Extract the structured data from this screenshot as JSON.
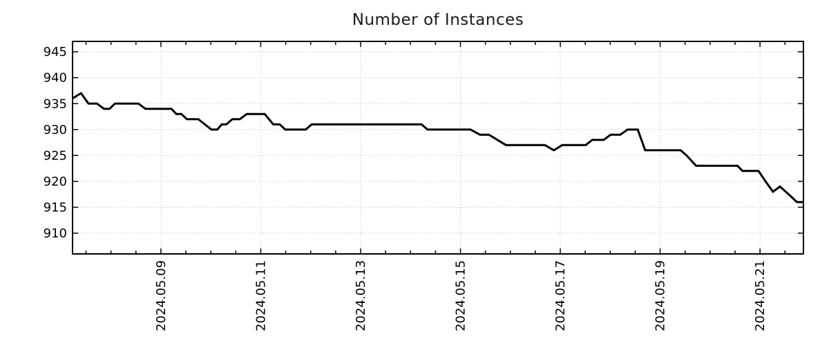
{
  "figure": {
    "background": "#ffffff"
  },
  "chart_data": {
    "type": "line",
    "title": "Number of Instances",
    "xlabel": "",
    "ylabel": "",
    "legend": "none",
    "grid": "dotted major gridlines",
    "x_axis": {
      "kind": "date",
      "tick_labels": [
        "2024.05.09",
        "2024.05.11",
        "2024.05.13",
        "2024.05.15",
        "2024.05.17",
        "2024.05.19",
        "2024.05.21"
      ],
      "tick_positions_days": [
        9,
        11,
        13,
        15,
        17,
        19,
        21
      ],
      "minor_tick_step_days": 0.5,
      "lim_days": [
        7.23,
        21.87
      ],
      "label_rotation_deg": -90
    },
    "y_axis": {
      "ticks": [
        910,
        915,
        920,
        925,
        930,
        935,
        940,
        945
      ],
      "lim": [
        906,
        947
      ]
    },
    "series": [
      {
        "name": "Number of Instances",
        "color": "#000000",
        "points": [
          [
            7.23,
            936
          ],
          [
            7.4,
            937
          ],
          [
            7.55,
            935
          ],
          [
            7.72,
            935
          ],
          [
            7.86,
            934
          ],
          [
            7.97,
            934
          ],
          [
            8.08,
            935
          ],
          [
            8.55,
            935
          ],
          [
            8.69,
            934
          ],
          [
            9.21,
            934
          ],
          [
            9.31,
            933
          ],
          [
            9.41,
            933
          ],
          [
            9.52,
            932
          ],
          [
            9.75,
            932
          ],
          [
            10.01,
            930
          ],
          [
            10.13,
            930
          ],
          [
            10.22,
            931
          ],
          [
            10.31,
            931
          ],
          [
            10.43,
            932
          ],
          [
            10.58,
            932
          ],
          [
            10.72,
            933
          ],
          [
            11.08,
            933
          ],
          [
            11.25,
            931
          ],
          [
            11.38,
            931
          ],
          [
            11.49,
            930
          ],
          [
            11.9,
            930
          ],
          [
            12.02,
            931
          ],
          [
            14.22,
            931
          ],
          [
            14.34,
            930
          ],
          [
            15.2,
            930
          ],
          [
            15.39,
            929
          ],
          [
            15.57,
            929
          ],
          [
            15.91,
            927
          ],
          [
            16.69,
            927
          ],
          [
            16.87,
            926
          ],
          [
            17.04,
            927
          ],
          [
            17.51,
            927
          ],
          [
            17.64,
            928
          ],
          [
            17.87,
            928
          ],
          [
            18.01,
            929
          ],
          [
            18.2,
            929
          ],
          [
            18.35,
            930
          ],
          [
            18.55,
            930
          ],
          [
            18.7,
            926
          ],
          [
            19.41,
            926
          ],
          [
            19.53,
            925
          ],
          [
            19.72,
            923
          ],
          [
            20.55,
            923
          ],
          [
            20.65,
            922
          ],
          [
            20.97,
            922
          ],
          [
            21.11,
            920
          ],
          [
            21.26,
            918
          ],
          [
            21.4,
            919
          ],
          [
            21.63,
            917
          ],
          [
            21.74,
            916
          ],
          [
            21.87,
            916
          ]
        ]
      }
    ]
  },
  "style": {
    "line_color": "#000000",
    "line_width": 3,
    "grid_color": "#b3b3b3",
    "frame_color": "#000000",
    "text_color": "#1a1a1a",
    "background": "#ffffff"
  }
}
